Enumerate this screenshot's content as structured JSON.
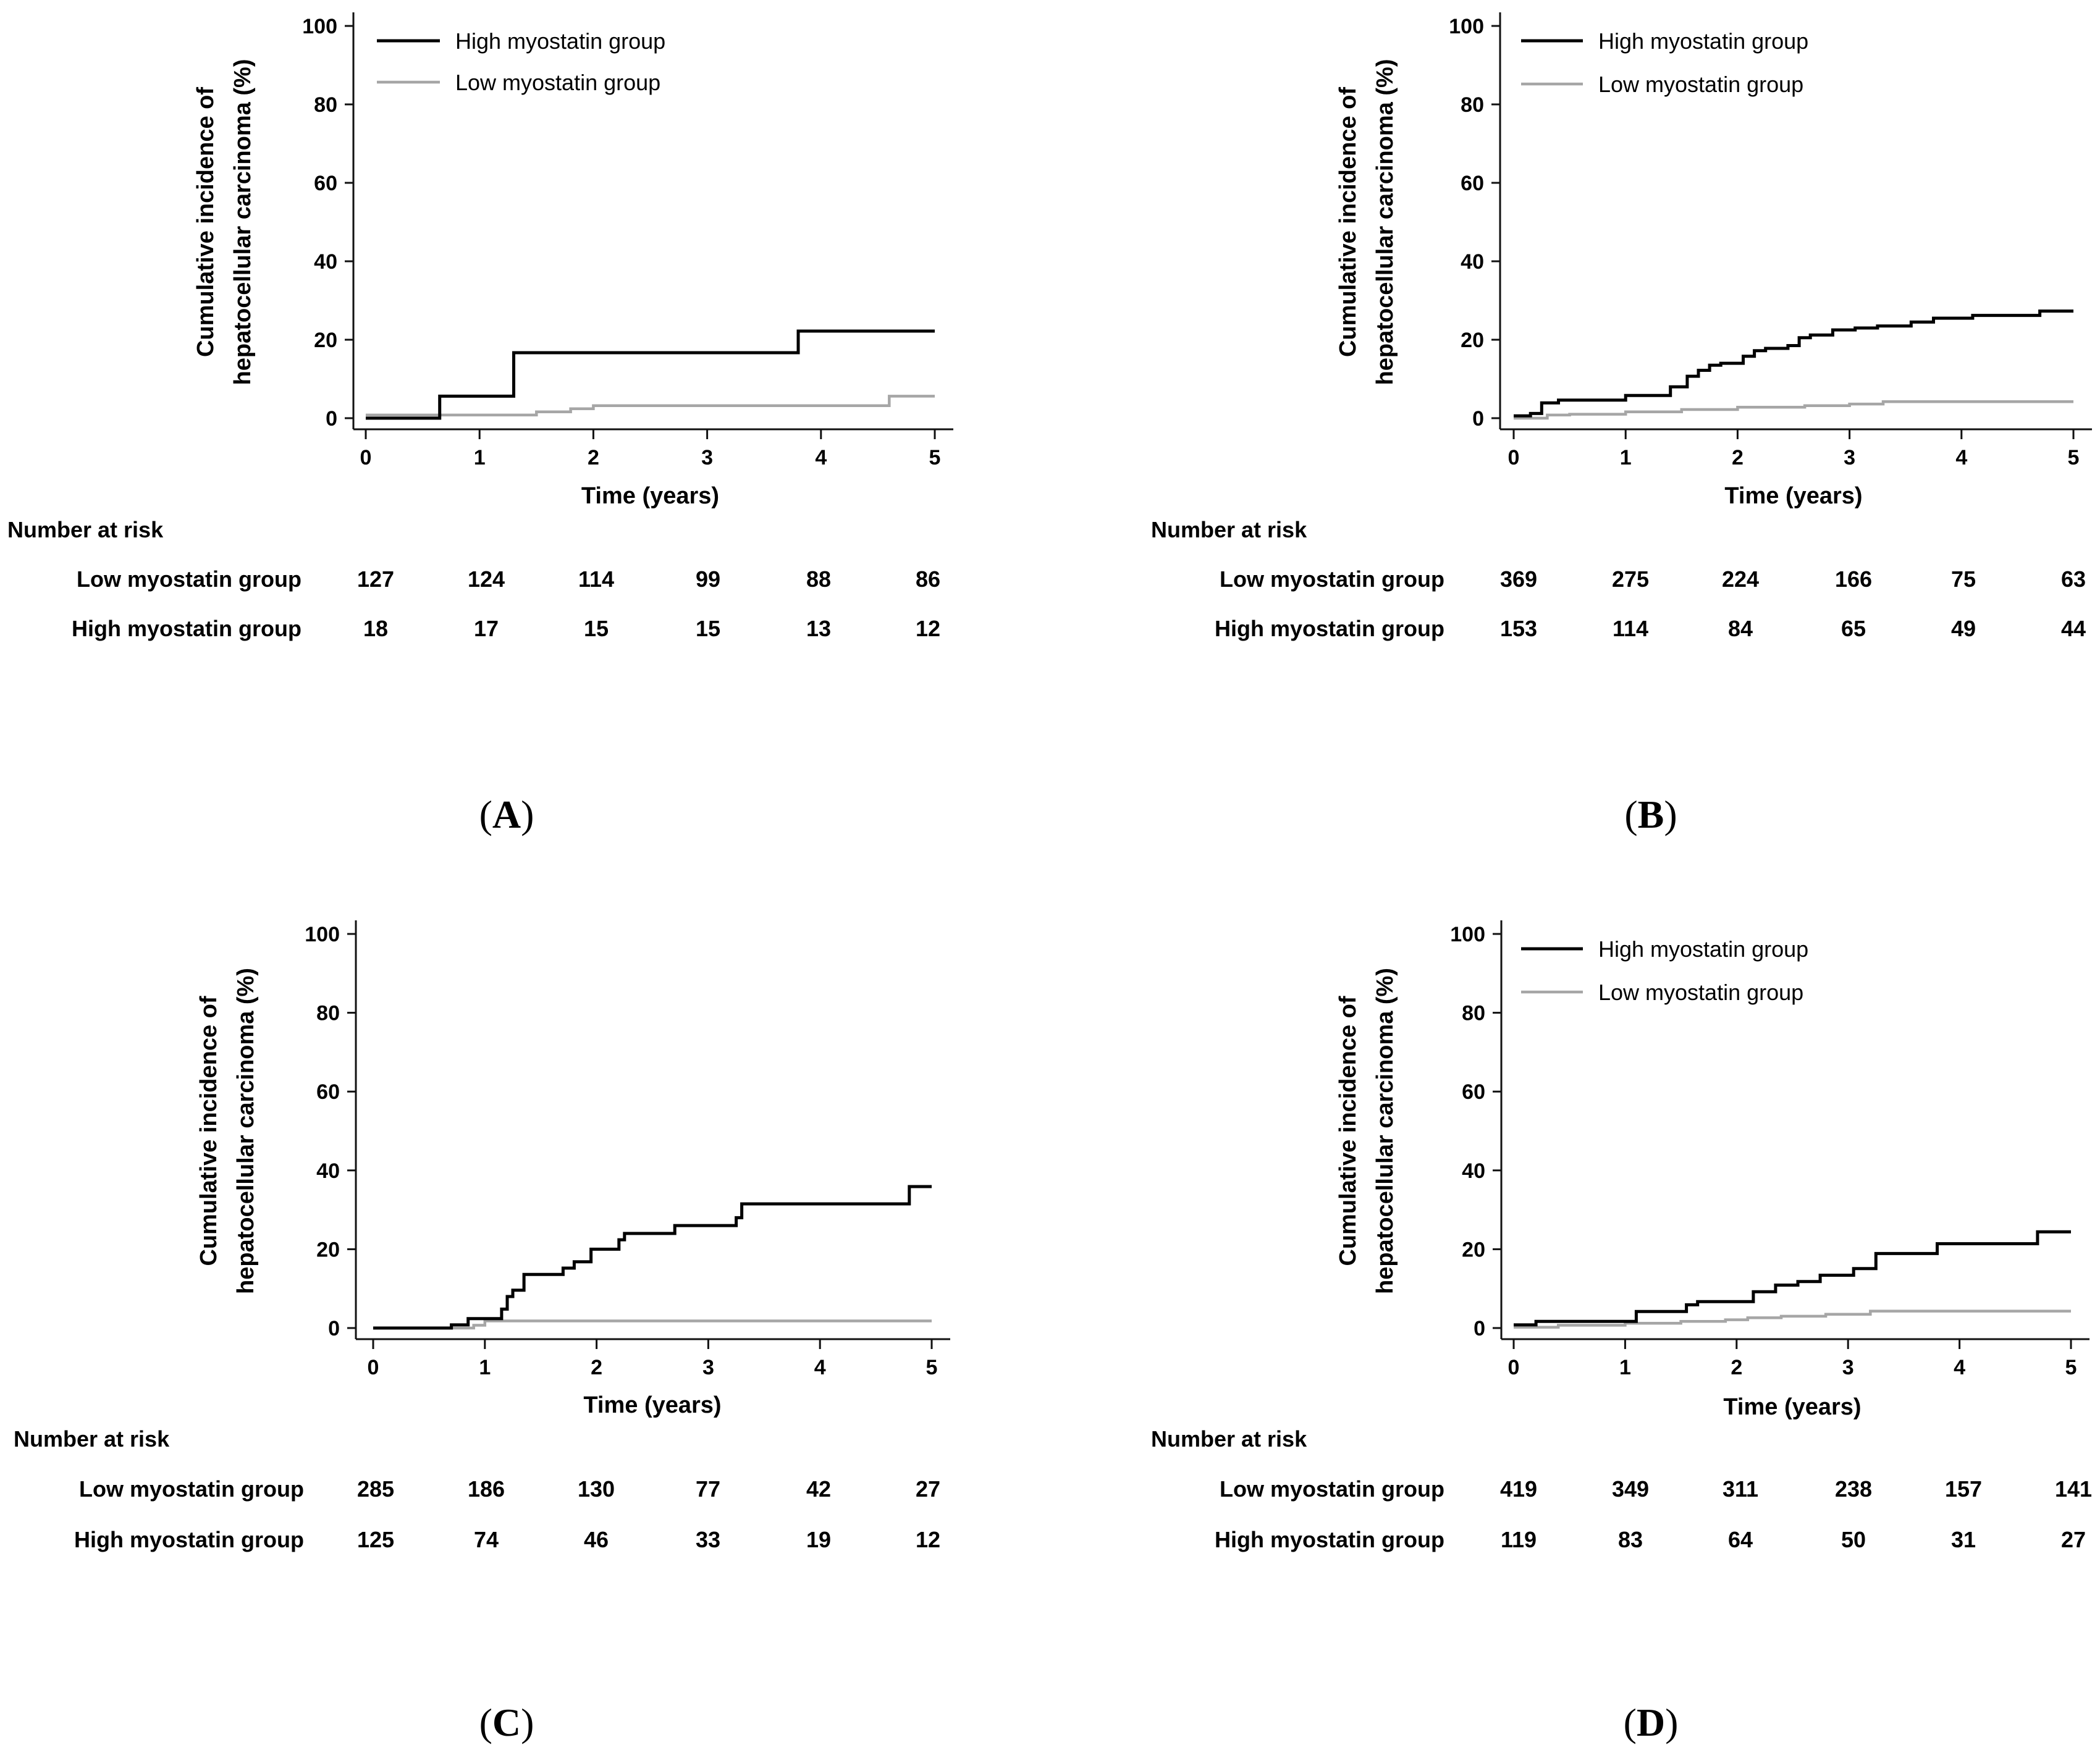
{
  "chart_data": [
    {
      "type": "line",
      "step": true,
      "panel_label": "A",
      "ylabel_line1": "Cumulative incidence of",
      "ylabel_line2": "hepatocellular carcinoma (%)",
      "xlabel": "Time (years)",
      "ylim": [
        0,
        100
      ],
      "xlim": [
        0,
        5
      ],
      "y_ticks": [
        "0",
        "20",
        "40",
        "60",
        "80",
        "100"
      ],
      "x_ticks": [
        "0",
        "1",
        "2",
        "3",
        "4",
        "5"
      ],
      "legend_visible": true,
      "legend_position": "top-left",
      "series": [
        {
          "name": "High myostatin group",
          "color": "#000000",
          "x": [
            0,
            0.65,
            1.3,
            3.8,
            5
          ],
          "y": [
            0,
            5.6,
            16.7,
            22.2,
            22.2
          ]
        },
        {
          "name": "Low myostatin group",
          "color": "#a6a6a6",
          "x": [
            0,
            0.7,
            1.5,
            1.8,
            2.0,
            2.3,
            4.5,
            4.6,
            5
          ],
          "y": [
            0.8,
            0.8,
            1.6,
            2.4,
            3.2,
            3.2,
            3.2,
            5.6,
            5.6
          ]
        }
      ],
      "risk_table": {
        "title": "Number at risk",
        "rows": [
          {
            "label": "Low myostatin group",
            "values": [
              "127",
              "124",
              "114",
              "99",
              "88",
              "86"
            ]
          },
          {
            "label": "High myostatin group",
            "values": [
              "18",
              "17",
              "15",
              "15",
              "13",
              "12"
            ]
          }
        ]
      }
    },
    {
      "type": "line",
      "step": true,
      "panel_label": "B",
      "ylabel_line1": "Cumulative incidence of",
      "ylabel_line2": "hepatocellular carcinoma (%)",
      "xlabel": "Time (years)",
      "ylim": [
        0,
        100
      ],
      "xlim": [
        0,
        5
      ],
      "y_ticks": [
        "0",
        "20",
        "40",
        "60",
        "80",
        "100"
      ],
      "x_ticks": [
        "0",
        "1",
        "2",
        "3",
        "4",
        "5"
      ],
      "legend_visible": true,
      "legend_position": "top-left",
      "series": [
        {
          "name": "High myostatin group",
          "color": "#000000",
          "x": [
            0,
            0.15,
            0.25,
            0.4,
            1.0,
            1.4,
            1.55,
            1.65,
            1.75,
            1.85,
            2.05,
            2.15,
            2.25,
            2.45,
            2.55,
            2.65,
            2.85,
            3.05,
            3.25,
            3.55,
            3.75,
            4.1,
            4.7,
            5
          ],
          "y": [
            0.6,
            1.2,
            3.9,
            4.6,
            5.8,
            8.0,
            10.7,
            12.2,
            13.5,
            14.0,
            15.8,
            17.2,
            17.8,
            18.5,
            20.5,
            21.2,
            22.5,
            23.0,
            23.5,
            24.5,
            25.5,
            26.2,
            27.3,
            27.3
          ]
        },
        {
          "name": "Low myostatin group",
          "color": "#a6a6a6",
          "x": [
            0,
            0.3,
            0.5,
            1.0,
            1.5,
            2.0,
            2.6,
            3.0,
            3.3,
            5
          ],
          "y": [
            0,
            0.8,
            1.0,
            1.6,
            2.2,
            2.8,
            3.2,
            3.6,
            4.2,
            4.2
          ]
        }
      ],
      "risk_table": {
        "title": "Number at risk",
        "rows": [
          {
            "label": "Low myostatin group",
            "values": [
              "369",
              "275",
              "224",
              "166",
              "75",
              "63"
            ]
          },
          {
            "label": "High myostatin group",
            "values": [
              "153",
              "114",
              "84",
              "65",
              "49",
              "44"
            ]
          }
        ]
      }
    },
    {
      "type": "line",
      "step": true,
      "panel_label": "C",
      "ylabel_line1": "Cumulative incidence of",
      "ylabel_line2": "hepatocellular carcinoma (%)",
      "xlabel": "Time (years)",
      "ylim": [
        0,
        100
      ],
      "xlim": [
        0,
        5
      ],
      "y_ticks": [
        "0",
        "20",
        "40",
        "60",
        "80",
        "100"
      ],
      "x_ticks": [
        "0",
        "1",
        "2",
        "3",
        "4",
        "5"
      ],
      "legend_visible": false,
      "legend_position": "none",
      "series": [
        {
          "name": "High myostatin group",
          "color": "#000000",
          "x": [
            0,
            0.7,
            0.85,
            1.15,
            1.2,
            1.25,
            1.35,
            1.7,
            1.8,
            1.95,
            2.2,
            2.25,
            2.7,
            3.25,
            3.3,
            4.8,
            5
          ],
          "y": [
            0,
            0.8,
            2.4,
            4.8,
            8.0,
            9.6,
            13.6,
            15.2,
            16.8,
            20.0,
            22.4,
            24.0,
            26.0,
            28.0,
            31.5,
            35.9,
            35.9
          ]
        },
        {
          "name": "Low myostatin group",
          "color": "#a6a6a6",
          "x": [
            0,
            0.9,
            1.0,
            5
          ],
          "y": [
            0,
            0.7,
            1.8,
            1.8
          ]
        }
      ],
      "risk_table": {
        "title": "Number at risk",
        "rows": [
          {
            "label": "Low myostatin group",
            "values": [
              "285",
              "186",
              "130",
              "77",
              "42",
              "27"
            ]
          },
          {
            "label": "High myostatin group",
            "values": [
              "125",
              "74",
              "46",
              "33",
              "19",
              "12"
            ]
          }
        ]
      }
    },
    {
      "type": "line",
      "step": true,
      "panel_label": "D",
      "ylabel_line1": "Cumulative incidence of",
      "ylabel_line2": "hepatocellular carcinoma (%)",
      "xlabel": "Time (years)",
      "ylim": [
        0,
        100
      ],
      "xlim": [
        0,
        5
      ],
      "y_ticks": [
        "0",
        "20",
        "40",
        "60",
        "80",
        "100"
      ],
      "x_ticks": [
        "0",
        "1",
        "2",
        "3",
        "4",
        "5"
      ],
      "legend_visible": true,
      "legend_position": "top-left",
      "series": [
        {
          "name": "High myostatin group",
          "color": "#000000",
          "x": [
            0,
            0.2,
            1.1,
            1.55,
            1.65,
            2.15,
            2.35,
            2.55,
            2.75,
            3.05,
            3.25,
            3.8,
            4.7,
            5
          ],
          "y": [
            0.8,
            1.7,
            4.2,
            5.9,
            6.7,
            9.2,
            10.9,
            11.8,
            13.4,
            15.1,
            18.9,
            21.4,
            24.4,
            24.4
          ]
        },
        {
          "name": "Low myostatin group",
          "color": "#a6a6a6",
          "x": [
            0,
            0.4,
            1.0,
            1.5,
            1.9,
            2.1,
            2.4,
            2.8,
            3.2,
            5
          ],
          "y": [
            0.2,
            0.7,
            1.2,
            1.7,
            2.1,
            2.6,
            3.0,
            3.5,
            4.3,
            4.3
          ]
        }
      ],
      "risk_table": {
        "title": "Number at risk",
        "rows": [
          {
            "label": "Low myostatin group",
            "values": [
              "419",
              "349",
              "311",
              "238",
              "157",
              "141"
            ]
          },
          {
            "label": "High myostatin group",
            "values": [
              "119",
              "83",
              "64",
              "50",
              "31",
              "27"
            ]
          }
        ]
      }
    }
  ]
}
